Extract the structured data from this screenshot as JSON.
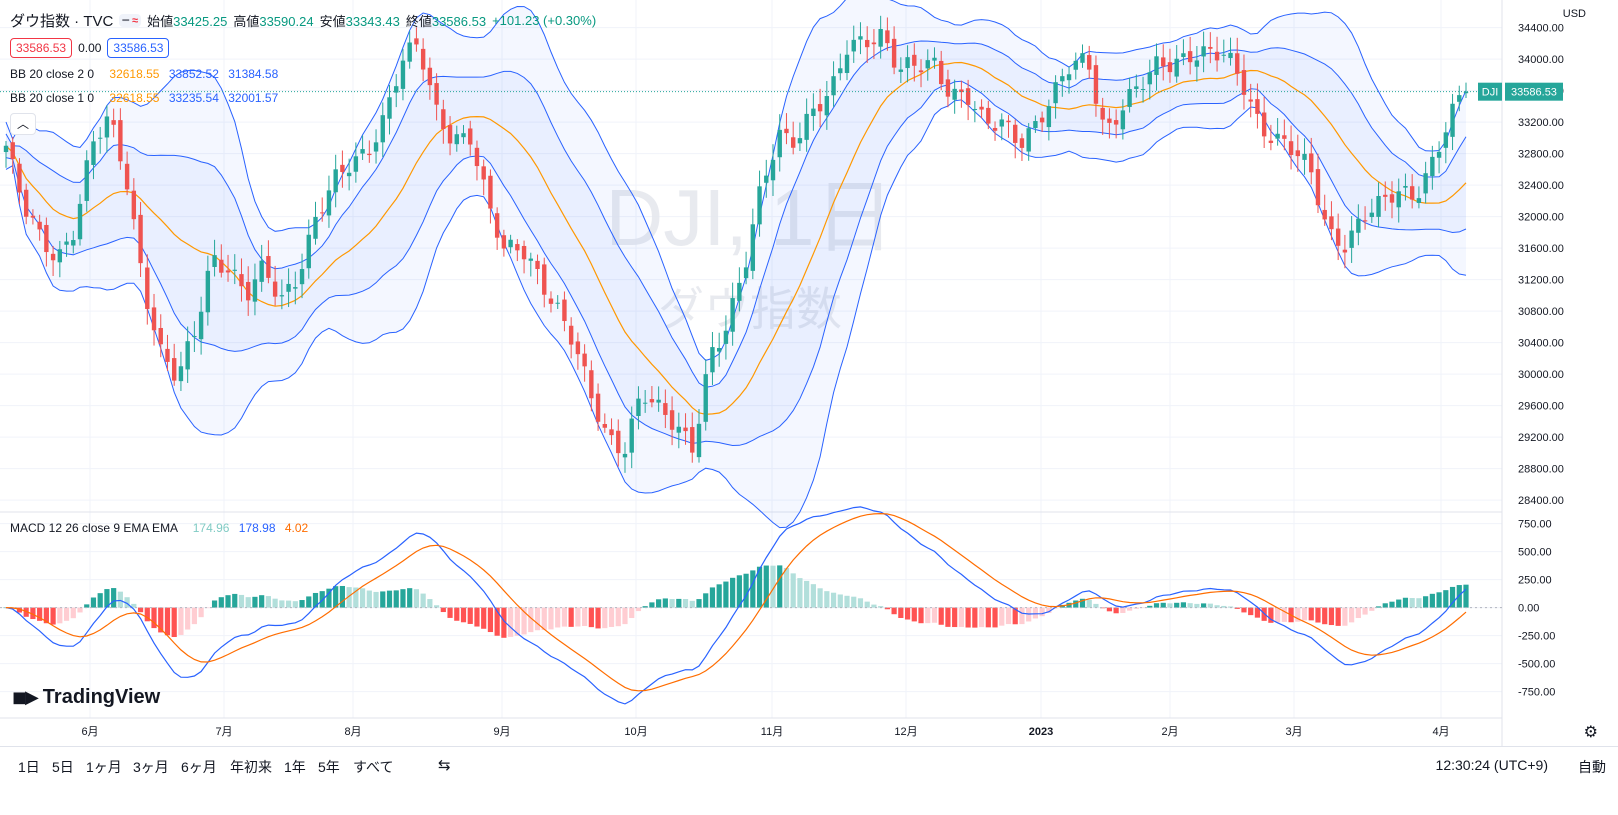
{
  "header": {
    "symbol": "ダウ指数 · TVC",
    "open_label": "始値",
    "open": "33425.25",
    "high_label": "高値",
    "high": "33590.24",
    "low_label": "安値",
    "low": "33343.43",
    "close_label": "終値",
    "close": "33586.53",
    "change": "+101.23 (+0.30%)",
    "bid": "33586.53",
    "spread": "0.00",
    "ask": "33586.53",
    "currency": "USD"
  },
  "indicators": {
    "bb2": {
      "label": "BB 20 close 2 0",
      "basis": "32618.55",
      "upper": "33852.52",
      "lower": "31384.58"
    },
    "bb1": {
      "label": "BB 20 close 1 0",
      "basis": "32618.55",
      "upper": "33235.54",
      "lower": "32001.57"
    },
    "macd": {
      "label": "MACD 12 26 close 9 EMA EMA",
      "hist": "174.96",
      "macd": "178.98",
      "signal": "4.02"
    }
  },
  "watermark": {
    "line1": "DJI, 1日",
    "line2": "ダウ指数"
  },
  "price_tag": {
    "symbol": "DJI",
    "value": "33586.53"
  },
  "branding": {
    "name": "TradingView"
  },
  "bottom": {
    "ranges": [
      "1日",
      "5日",
      "1ヶ月",
      "3ヶ月",
      "6ヶ月",
      "年初来",
      "1年",
      "5年",
      "すべて"
    ],
    "clock": "12:30:24 (UTC+9)",
    "auto": "自動"
  },
  "colors": {
    "up": "#26a69a",
    "down": "#ef5350",
    "band": "#2962ff",
    "basis": "#ff9800",
    "macd": "#2962ff",
    "signal": "#ff6d00"
  },
  "chart_data": [
    {
      "type": "candlestick",
      "title": "ダウ指数 · TVC",
      "ylim": [
        28300,
        34700
      ],
      "y_ticks": [
        28400,
        28800,
        29200,
        29600,
        30000,
        30400,
        30800,
        31200,
        31600,
        32000,
        32400,
        32800,
        33200,
        33600,
        34000,
        34400
      ],
      "x_ticks": [
        "6月",
        "7月",
        "8月",
        "9月",
        "10月",
        "11月",
        "12月",
        "2023",
        "2月",
        "3月",
        "4月"
      ],
      "grid": true,
      "approx_close_series": [
        32900,
        32100,
        31700,
        31500,
        31900,
        32900,
        33200,
        32500,
        31200,
        30300,
        29900,
        30500,
        31500,
        31400,
        31000,
        31300,
        30900,
        31300,
        32000,
        32400,
        32600,
        32800,
        33300,
        34000,
        34150,
        33300,
        33000,
        33100,
        32200,
        31500,
        31600,
        31300,
        30900,
        30400,
        29700,
        29200,
        29100,
        29800,
        29500,
        29300,
        29100,
        30300,
        30600,
        31300,
        32400,
        33100,
        33000,
        33300,
        33500,
        34200,
        34300,
        34300,
        33800,
        33900,
        34000,
        33600,
        33500,
        33100,
        33200,
        33000,
        33200,
        33500,
        33900,
        34000,
        33100,
        33400,
        33600,
        33900,
        34000,
        34100,
        34050,
        34000,
        33700,
        33200,
        33000,
        32800,
        32500,
        31800,
        31700,
        32000,
        32100,
        32300,
        32300,
        32700,
        33200,
        33586
      ],
      "bollinger": [
        {
          "name": "BB 20 close 2 0",
          "basis": 32618.55,
          "upper": 33852.52,
          "lower": 31384.58
        },
        {
          "name": "BB 20 close 1 0",
          "basis": 32618.55,
          "upper": 33235.54,
          "lower": 32001.57
        }
      ]
    },
    {
      "type": "macd",
      "title": "MACD 12 26 close 9 EMA EMA",
      "ylim": [
        -950,
        800
      ],
      "y_ticks": [
        750,
        500,
        250,
        0,
        -250,
        -500,
        -750
      ],
      "latest": {
        "histogram": 174.96,
        "macd": 178.98,
        "signal": 4.02
      }
    }
  ]
}
